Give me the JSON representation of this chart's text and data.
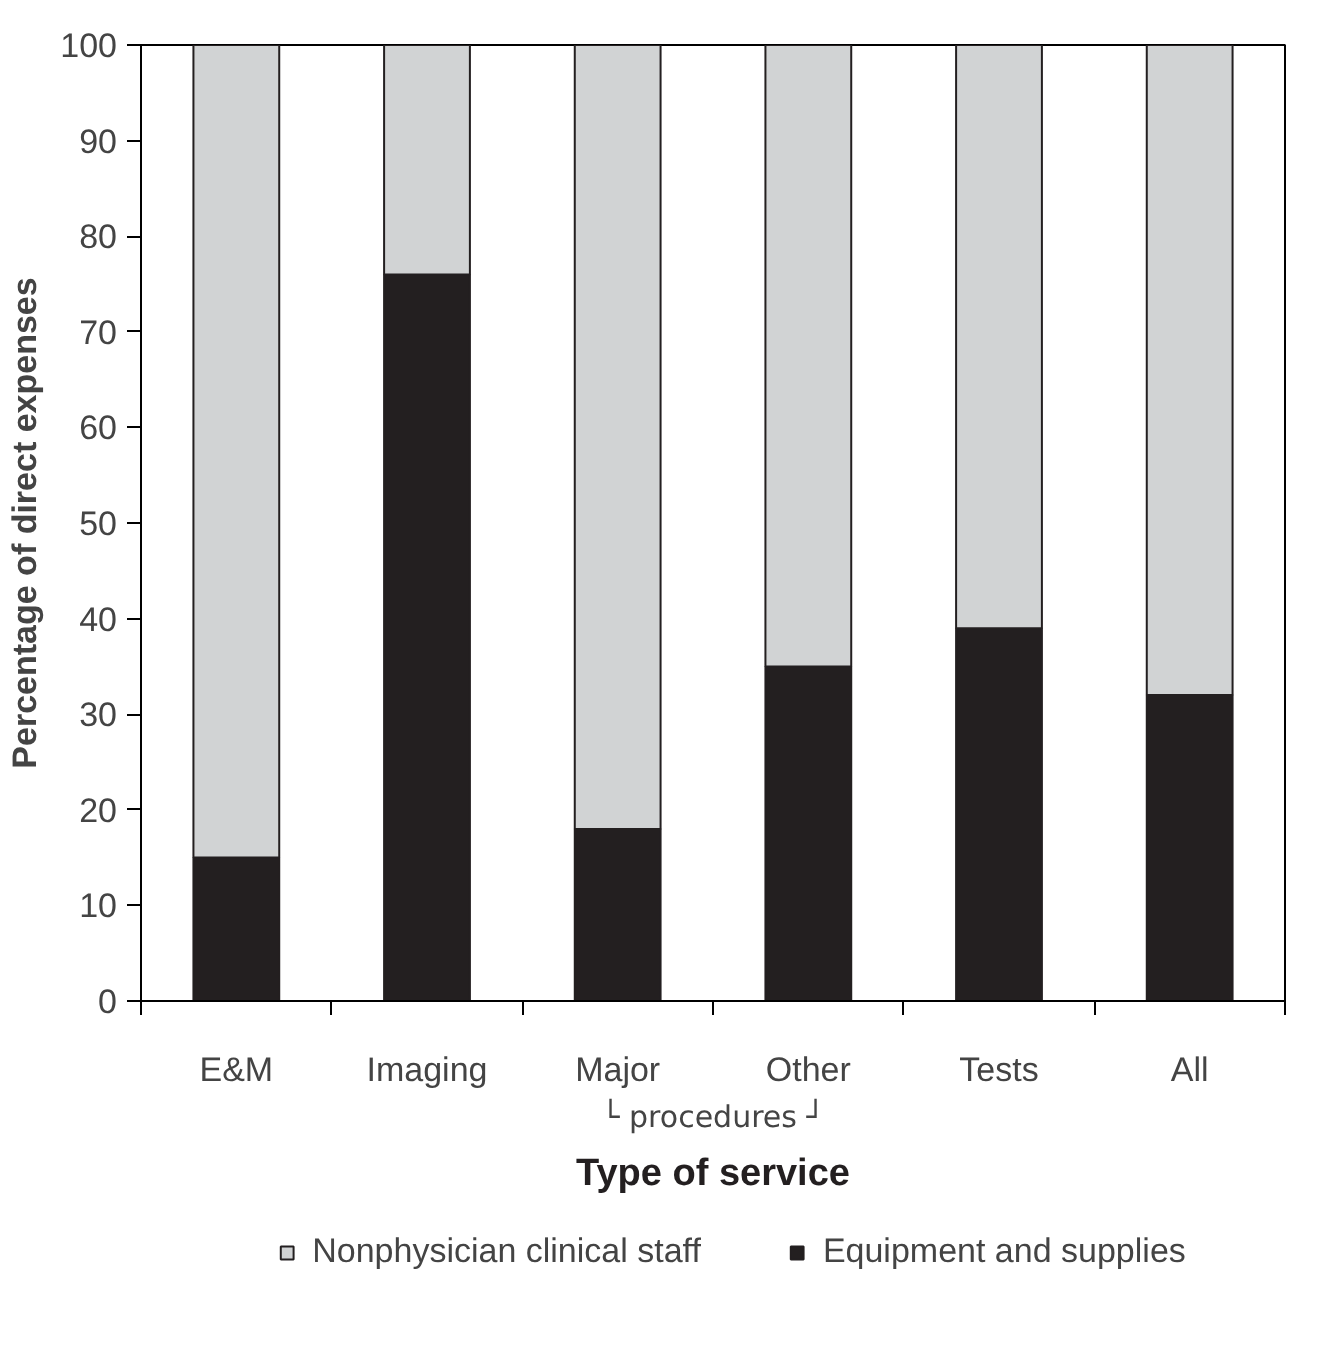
{
  "chart_data": {
    "type": "bar",
    "stacked": true,
    "xlabel": "Type of service",
    "ylabel": "Percentage of direct expenses",
    "categories": [
      "E&M",
      "Imaging",
      "Major",
      "Other",
      "Tests",
      "All"
    ],
    "series": [
      {
        "name": "Equipment and supplies",
        "color": "#231f20",
        "values": [
          15,
          76,
          18,
          35,
          39,
          32
        ]
      },
      {
        "name": "Nonphysician clinical staff",
        "color": "#d1d3d4",
        "values": [
          85,
          24,
          82,
          65,
          61,
          68
        ]
      }
    ],
    "ylim": [
      0,
      100
    ],
    "yticks": [
      0,
      10,
      20,
      30,
      40,
      50,
      60,
      70,
      80,
      90,
      100
    ],
    "annotations": [
      "└ procedures ┘"
    ],
    "grid": false,
    "legend": "bottom"
  }
}
